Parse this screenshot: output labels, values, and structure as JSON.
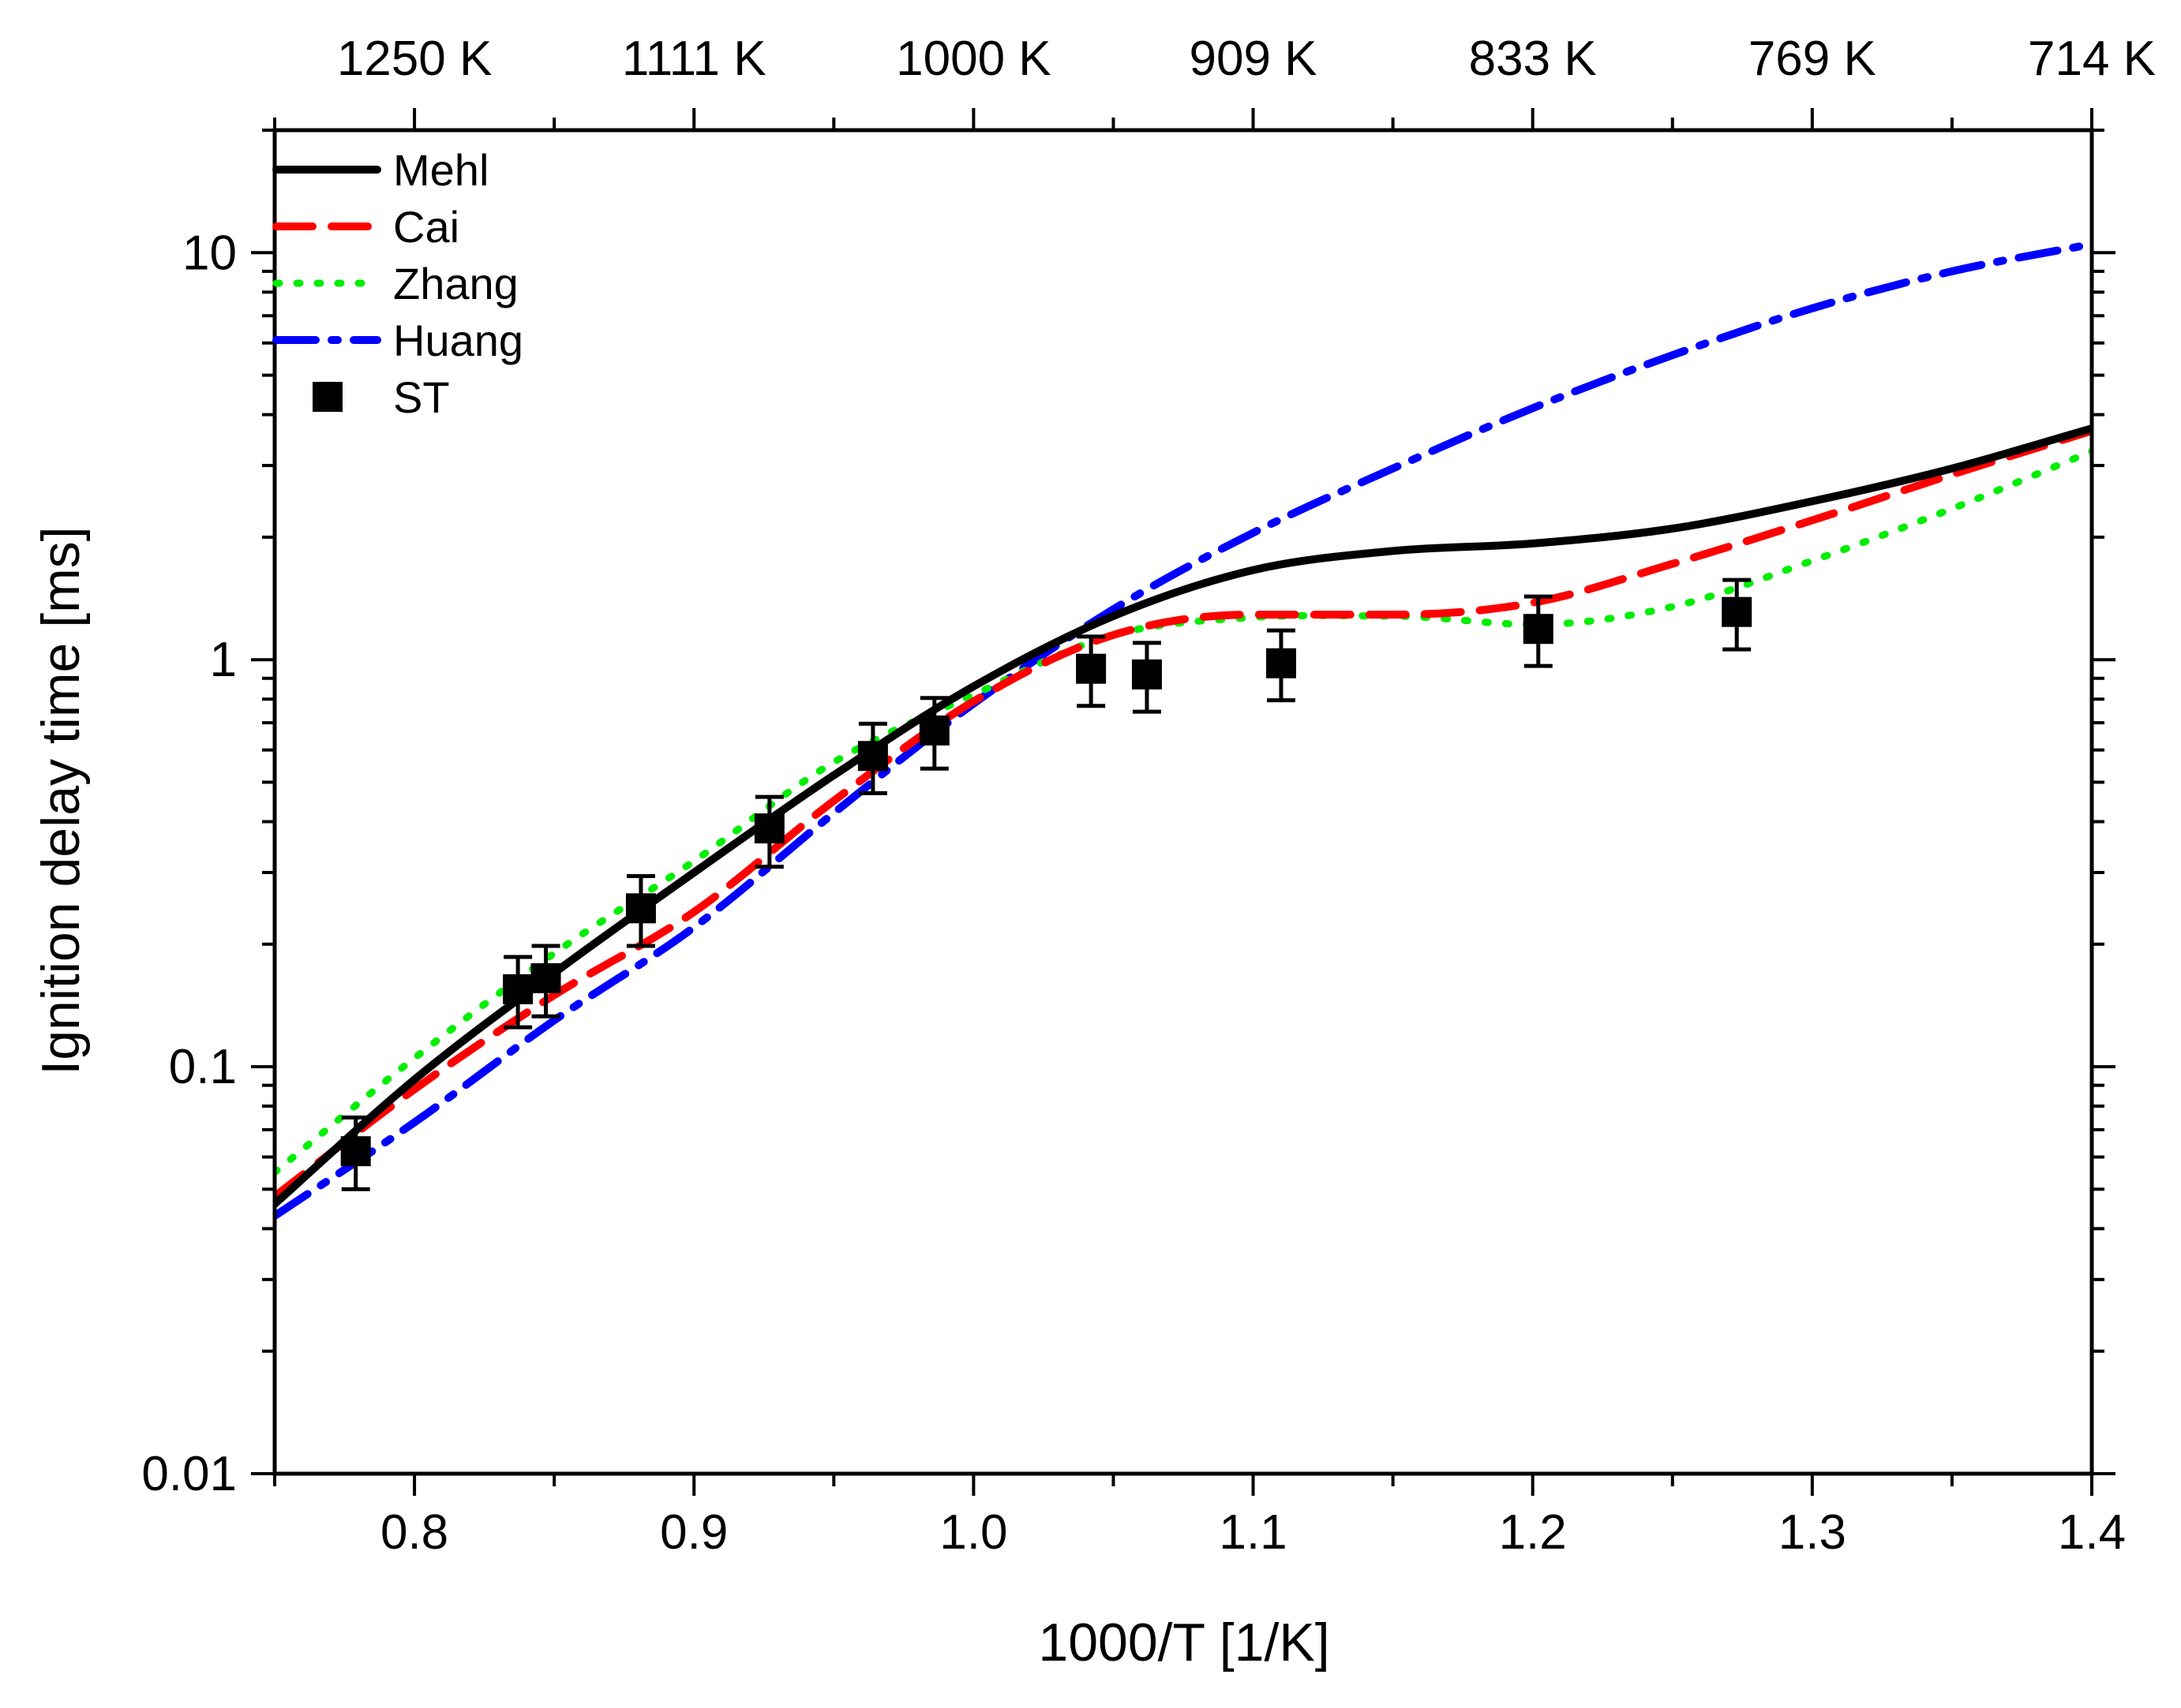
{
  "chart_data": {
    "type": "line",
    "xlabel": "1000/T [1/K]",
    "ylabel": "Ignition delay time [ms]",
    "xlim": [
      0.75,
      1.4
    ],
    "ylim": [
      0.01,
      20
    ],
    "yscale": "log",
    "x_ticks": [
      0.8,
      0.9,
      1.0,
      1.1,
      1.2,
      1.3,
      1.4
    ],
    "x_tick_labels": [
      "0.8",
      "0.9",
      "1.0",
      "1.1",
      "1.2",
      "1.3",
      "1.4"
    ],
    "y_ticks": [
      0.01,
      0.1,
      1,
      10
    ],
    "y_tick_labels": [
      "0.01",
      "0.1",
      "1",
      "10"
    ],
    "top_axis": {
      "ticks_x": [
        0.8,
        0.9,
        1.0,
        1.1,
        1.2,
        1.3,
        1.4
      ],
      "labels": [
        "1250 K",
        "1111 K",
        "1000 K",
        "909 K",
        "833 K",
        "769 K",
        "714 K"
      ]
    },
    "legend_position": "top-left",
    "series": [
      {
        "name": "Mehl",
        "style": "solid",
        "color": "#000000",
        "x": [
          0.75,
          0.8,
          0.85,
          0.9,
          0.95,
          1.0,
          1.05,
          1.1,
          1.15,
          1.2,
          1.25,
          1.3,
          1.35,
          1.4
        ],
        "y": [
          0.046,
          0.093,
          0.17,
          0.3,
          0.52,
          0.86,
          1.28,
          1.66,
          1.85,
          1.93,
          2.1,
          2.45,
          2.95,
          3.7
        ]
      },
      {
        "name": "Cai",
        "style": "dashed",
        "color": "#ff0000",
        "x": [
          0.75,
          0.8,
          0.85,
          0.9,
          0.95,
          1.0,
          1.05,
          1.1,
          1.15,
          1.2,
          1.25,
          1.3,
          1.35,
          1.4
        ],
        "y": [
          0.048,
          0.088,
          0.15,
          0.24,
          0.45,
          0.79,
          1.15,
          1.29,
          1.29,
          1.38,
          1.72,
          2.2,
          2.85,
          3.65
        ]
      },
      {
        "name": "Zhang",
        "style": "dotted",
        "color": "#00ee00",
        "x": [
          0.75,
          0.8,
          0.85,
          0.9,
          0.95,
          1.0,
          1.05,
          1.1,
          1.15,
          1.2,
          1.25,
          1.3,
          1.35,
          1.4
        ],
        "y": [
          0.055,
          0.105,
          0.19,
          0.32,
          0.56,
          0.82,
          1.15,
          1.27,
          1.28,
          1.22,
          1.35,
          1.75,
          2.35,
          3.25
        ]
      },
      {
        "name": "Huang",
        "style": "dash-dot",
        "color": "#0000ff",
        "x": [
          0.75,
          0.8,
          0.85,
          0.9,
          0.95,
          1.0,
          1.05,
          1.1,
          1.15,
          1.2,
          1.25,
          1.3,
          1.35,
          1.4
        ],
        "y": [
          0.043,
          0.073,
          0.13,
          0.22,
          0.42,
          0.78,
          1.33,
          2.05,
          2.95,
          4.15,
          5.6,
          7.3,
          9.0,
          10.5
        ]
      }
    ],
    "scatter": {
      "name": "ST",
      "marker": "square",
      "color": "#000000",
      "x": [
        0.779,
        0.837,
        0.847,
        0.881,
        0.927,
        0.964,
        0.986,
        1.042,
        1.062,
        1.11,
        1.202,
        1.273
      ],
      "y": [
        0.062,
        0.155,
        0.165,
        0.245,
        0.385,
        0.58,
        0.67,
        0.95,
        0.92,
        0.98,
        1.19,
        1.31
      ],
      "yerr_low": [
        0.05,
        0.125,
        0.133,
        0.198,
        0.31,
        0.47,
        0.54,
        0.77,
        0.745,
        0.795,
        0.965,
        1.06
      ],
      "yerr_high": [
        0.075,
        0.186,
        0.198,
        0.294,
        0.46,
        0.696,
        0.805,
        1.14,
        1.1,
        1.18,
        1.43,
        1.57
      ]
    }
  }
}
